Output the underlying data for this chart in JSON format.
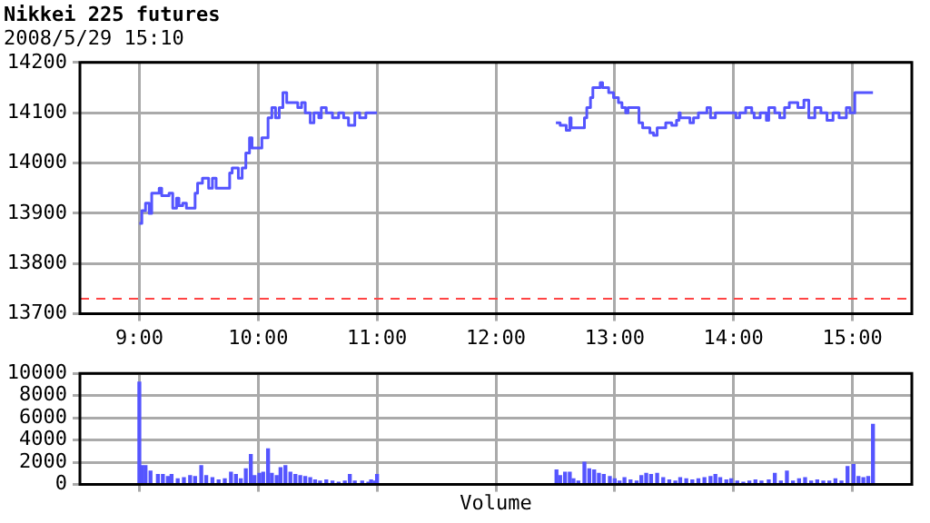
{
  "chart_data": [
    {
      "type": "step",
      "title": "Nikkei 225 futures",
      "subtitle": "2008/5/29 15:10",
      "xlim": [
        8.5,
        15.5
      ],
      "xticks": [
        {
          "value": 9,
          "label": "9:00"
        },
        {
          "value": 10,
          "label": "10:00"
        },
        {
          "value": 11,
          "label": "11:00"
        },
        {
          "value": 12,
          "label": "12:00"
        },
        {
          "value": 13,
          "label": "13:00"
        },
        {
          "value": 14,
          "label": "14:00"
        },
        {
          "value": 15,
          "label": "15:00"
        }
      ],
      "ylim": [
        13700,
        14200
      ],
      "yticks": [
        13700,
        13800,
        13900,
        14000,
        14100,
        14200
      ],
      "grid": true,
      "ref_lines": [
        {
          "axis": "y",
          "value": 13730,
          "color": "#ff4444",
          "line_style": "dashed"
        }
      ],
      "series": [
        {
          "color": "#5555ff",
          "x": [
            9.0,
            9.021,
            9.052,
            9.083,
            9.104,
            9.167,
            9.188,
            9.25,
            9.281,
            9.313,
            9.333,
            9.365,
            9.396,
            9.469,
            9.49,
            9.531,
            9.583,
            9.615,
            9.646,
            9.76,
            9.781,
            9.833,
            9.865,
            9.896,
            9.927,
            9.948,
            10.031,
            10.083,
            10.115,
            10.146,
            10.177,
            10.208,
            10.24,
            10.333,
            10.365,
            10.396,
            10.438,
            10.469,
            10.51,
            10.531,
            10.573,
            10.625,
            10.677,
            10.719,
            10.76,
            10.813,
            10.854,
            10.906,
            11.0,
            11.75,
            12.505,
            12.541,
            12.592,
            12.622,
            12.633,
            12.745,
            12.765,
            12.796,
            12.816,
            12.878,
            12.898,
            12.949,
            12.99,
            13.031,
            13.061,
            13.092,
            13.112,
            13.204,
            13.235,
            13.296,
            13.327,
            13.357,
            13.429,
            13.48,
            13.52,
            13.541,
            13.551,
            13.633,
            13.663,
            13.704,
            13.776,
            13.806,
            13.847,
            14.02,
            14.051,
            14.102,
            14.153,
            14.173,
            14.224,
            14.276,
            14.296,
            14.347,
            14.388,
            14.429,
            14.469,
            14.541,
            14.592,
            14.633,
            14.684,
            14.735,
            14.786,
            14.837,
            14.888,
            14.949,
            14.98,
            15.02,
            15.173
          ],
          "values": [
            13880,
            13905,
            13920,
            13900,
            13940,
            13950,
            13935,
            13940,
            13910,
            13930,
            13915,
            13920,
            13910,
            13940,
            13960,
            13970,
            13950,
            13970,
            13950,
            13980,
            13990,
            13970,
            13990,
            14020,
            14050,
            14030,
            14050,
            14090,
            14110,
            14090,
            14110,
            14140,
            14120,
            14110,
            14120,
            14100,
            14080,
            14100,
            14090,
            14110,
            14100,
            14090,
            14100,
            14090,
            14075,
            14100,
            14090,
            14100,
            14100,
            null,
            14080,
            14075,
            14065,
            14090,
            14070,
            14090,
            14110,
            14130,
            14150,
            14160,
            14150,
            14140,
            14130,
            14120,
            14110,
            14100,
            14110,
            14080,
            14070,
            14060,
            14055,
            14070,
            14080,
            14075,
            14085,
            14100,
            14090,
            14080,
            14090,
            14100,
            14110,
            14090,
            14100,
            14090,
            14100,
            14110,
            14100,
            14090,
            14100,
            14085,
            14110,
            14100,
            14090,
            14110,
            14120,
            14110,
            14125,
            14090,
            14110,
            14100,
            14085,
            14100,
            14090,
            14110,
            14100,
            14140,
            14140
          ]
        }
      ]
    },
    {
      "type": "bar",
      "xlabel": "Volume",
      "xlim": [
        8.5,
        15.5
      ],
      "xticks": [
        9,
        10,
        11,
        12,
        13,
        14,
        15
      ],
      "tick_labels": "y",
      "ylim": [
        0,
        10000
      ],
      "yticks": [
        0,
        2000,
        4000,
        6000,
        8000,
        10000
      ],
      "grid": true,
      "series": [
        {
          "color": "#5555ff",
          "x": [
            9.0,
            9.021,
            9.052,
            9.094,
            9.156,
            9.198,
            9.24,
            9.271,
            9.323,
            9.375,
            9.427,
            9.469,
            9.521,
            9.563,
            9.615,
            9.667,
            9.719,
            9.771,
            9.813,
            9.854,
            9.896,
            9.938,
            9.969,
            10.01,
            10.042,
            10.083,
            10.115,
            10.156,
            10.188,
            10.229,
            10.271,
            10.313,
            10.354,
            10.396,
            10.438,
            10.479,
            10.521,
            10.573,
            10.625,
            10.677,
            10.729,
            10.771,
            10.813,
            10.875,
            10.927,
            10.95,
            10.98,
            11.0,
            12.51,
            12.541,
            12.582,
            12.622,
            12.653,
            12.694,
            12.745,
            12.786,
            12.827,
            12.867,
            12.908,
            12.959,
            13.0,
            13.041,
            13.082,
            13.133,
            13.184,
            13.224,
            13.265,
            13.306,
            13.357,
            13.408,
            13.459,
            13.51,
            13.551,
            13.602,
            13.653,
            13.704,
            13.755,
            13.806,
            13.847,
            13.888,
            13.939,
            13.98,
            14.031,
            14.082,
            14.133,
            14.184,
            14.235,
            14.296,
            14.347,
            14.398,
            14.449,
            14.5,
            14.551,
            14.602,
            14.653,
            14.704,
            14.755,
            14.806,
            14.857,
            14.908,
            14.959,
            15.01,
            15.051,
            15.092,
            15.133,
            15.173
          ],
          "values": [
            9200,
            1700,
            1700,
            1200,
            900,
            900,
            700,
            900,
            500,
            600,
            800,
            700,
            1700,
            800,
            600,
            400,
            500,
            1100,
            900,
            500,
            1400,
            2700,
            800,
            1000,
            1100,
            3200,
            1000,
            800,
            1500,
            1700,
            1100,
            900,
            800,
            700,
            600,
            400,
            300,
            400,
            300,
            200,
            300,
            900,
            300,
            300,
            200,
            400,
            300,
            900,
            1300,
            800,
            1100,
            1100,
            500,
            300,
            2000,
            1400,
            1300,
            1000,
            900,
            700,
            500,
            300,
            600,
            400,
            300,
            800,
            1000,
            900,
            1000,
            600,
            400,
            300,
            600,
            500,
            400,
            500,
            600,
            700,
            900,
            600,
            400,
            500,
            300,
            200,
            300,
            400,
            300,
            400,
            1000,
            300,
            1200,
            300,
            500,
            600,
            300,
            400,
            300,
            300,
            500,
            300,
            1600,
            1800,
            700,
            600,
            700,
            5400
          ]
        }
      ]
    }
  ]
}
